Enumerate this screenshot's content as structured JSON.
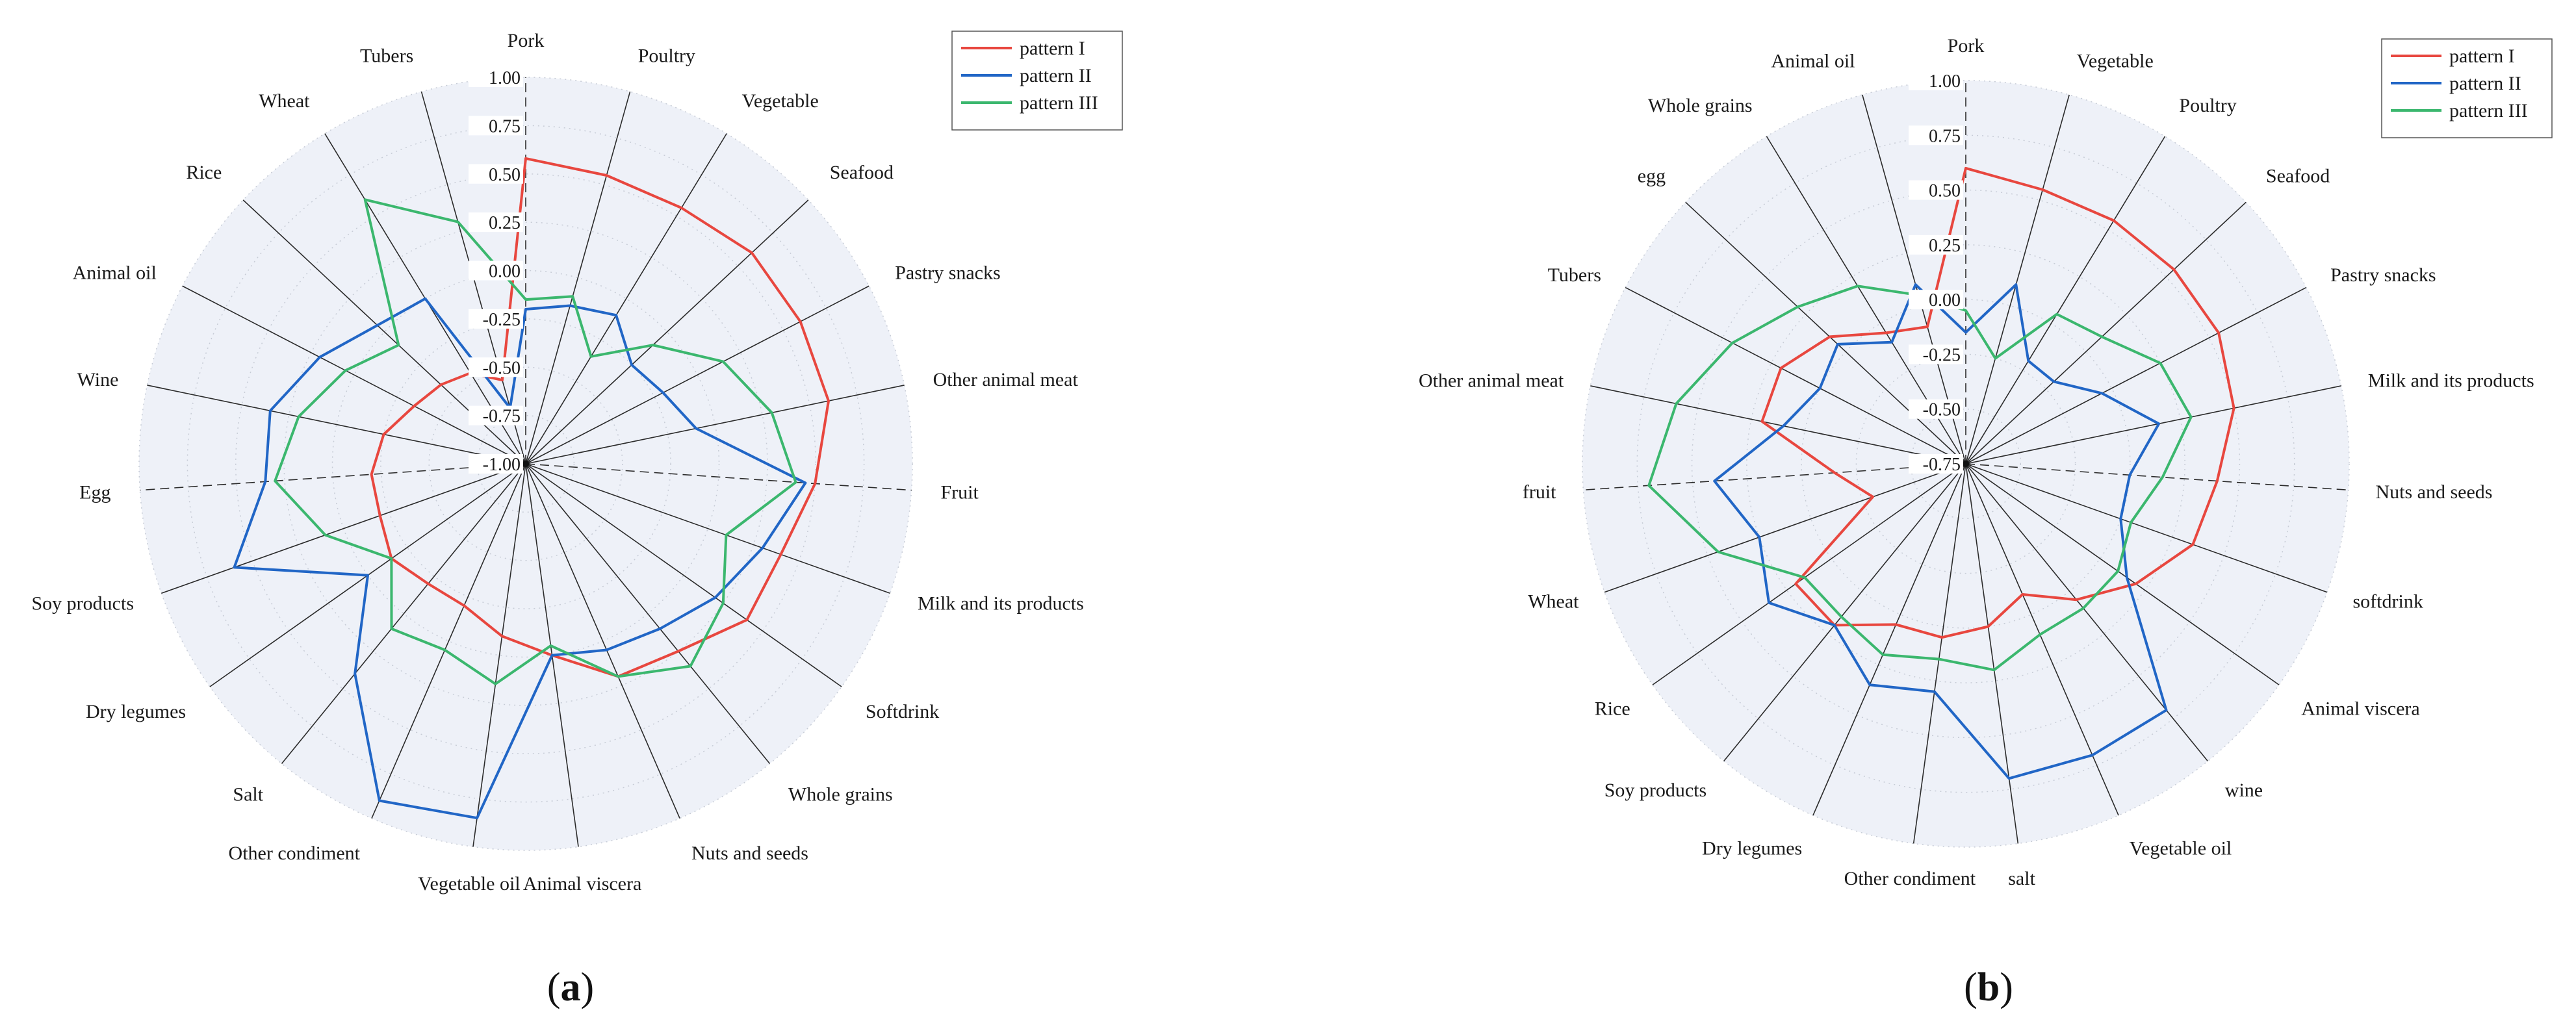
{
  "chart_data": [
    {
      "type": "radar",
      "panel_label": "a",
      "legend_location": "top-right",
      "rlim": [
        -1.0,
        1.0
      ],
      "ticks": [
        "1.00",
        "0.75",
        "0.50",
        "0.25",
        "0.00",
        "-0.25",
        "-0.50",
        "-0.75",
        "-1.00"
      ],
      "categories": [
        "Pork",
        "Poultry",
        "Vegetable",
        "Seafood",
        "Pastry snacks",
        "Other animal meat",
        "Fruit",
        "Milk and its products",
        "Softdrink",
        "Whole grains",
        "Nuts and seeds",
        "Animal viscera",
        "Vegetable oil",
        "Other condiment",
        "Salt",
        "Dry legumes",
        "Soy products",
        "Egg",
        "Wine",
        "Animal oil",
        "Rice",
        "Wheat",
        "Tubers"
      ],
      "series": [
        {
          "name": "pattern I",
          "color": "#e8473f",
          "values": [
            0.58,
            0.55,
            0.55,
            0.6,
            0.6,
            0.6,
            0.5,
            0.4,
            0.4,
            0.25,
            0.2,
            0.0,
            -0.1,
            -0.2,
            -0.2,
            -0.15,
            -0.2,
            -0.2,
            -0.25,
            -0.35,
            -0.4,
            -0.45,
            -0.55
          ]
        },
        {
          "name": "pattern II",
          "color": "#2166c6",
          "values": [
            -0.2,
            -0.15,
            -0.1,
            -0.25,
            -0.2,
            -0.1,
            0.45,
            0.3,
            0.2,
            0.1,
            0.05,
            0.0,
            0.85,
            0.9,
            0.4,
            0.0,
            0.6,
            0.35,
            0.35,
            0.2,
            0.05,
            0.0,
            -0.7
          ]
        },
        {
          "name": "pattern III",
          "color": "#3bb76e",
          "values": [
            -0.15,
            -0.1,
            -0.35,
            -0.1,
            0.15,
            0.3,
            0.4,
            0.1,
            0.25,
            0.35,
            0.2,
            -0.05,
            0.15,
            0.05,
            0.1,
            -0.15,
            0.1,
            0.3,
            0.2,
            0.05,
            -0.1,
            0.6,
            0.3
          ]
        }
      ]
    },
    {
      "type": "radar",
      "panel_label": "b",
      "legend_location": "top-right",
      "rlim": [
        -0.75,
        1.0
      ],
      "ticks": [
        "1.00",
        "0.75",
        "0.50",
        "0.25",
        "0.00",
        "-0.25",
        "-0.50",
        "-0.75"
      ],
      "categories": [
        "Pork",
        "Vegetable",
        "Poultry",
        "Seafood",
        "Pastry snacks",
        "Milk and its products",
        "Nuts and seeds",
        "softdrink",
        "Animal viscera",
        "wine",
        "Vegetable oil",
        "salt",
        "Other condiment",
        "Dry legumes",
        "Soy products",
        "Rice",
        "Wheat",
        "fruit",
        "Other animal meat",
        "Tubers",
        "egg",
        "Whole grains",
        "Animal oil"
      ],
      "series": [
        {
          "name": "pattern I",
          "color": "#e8473f",
          "values": [
            0.6,
            0.55,
            0.55,
            0.55,
            0.55,
            0.5,
            0.4,
            0.35,
            0.2,
            0.05,
            -0.1,
            0.0,
            0.05,
            0.05,
            0.2,
            0.2,
            -0.3,
            -0.15,
            0.2,
            0.2,
            0.1,
            -0.05,
            -0.1
          ]
        },
        {
          "name": "pattern II",
          "color": "#2166c6",
          "values": [
            -0.15,
            0.1,
            -0.2,
            -0.2,
            -0.05,
            0.15,
            0.0,
            0.0,
            0.15,
            0.7,
            0.7,
            0.7,
            0.3,
            0.35,
            0.2,
            0.35,
            0.25,
            0.4,
            0.1,
            0.0,
            0.05,
            -0.1,
            0.1
          ]
        },
        {
          "name": "pattern III",
          "color": "#3bb76e",
          "values": [
            -0.05,
            -0.25,
            0.05,
            0.1,
            0.25,
            0.3,
            0.15,
            0.05,
            0.1,
            0.1,
            0.1,
            0.2,
            0.15,
            0.2,
            0.15,
            0.15,
            0.45,
            0.7,
            0.6,
            0.45,
            0.3,
            0.2,
            0.05
          ]
        }
      ]
    }
  ]
}
